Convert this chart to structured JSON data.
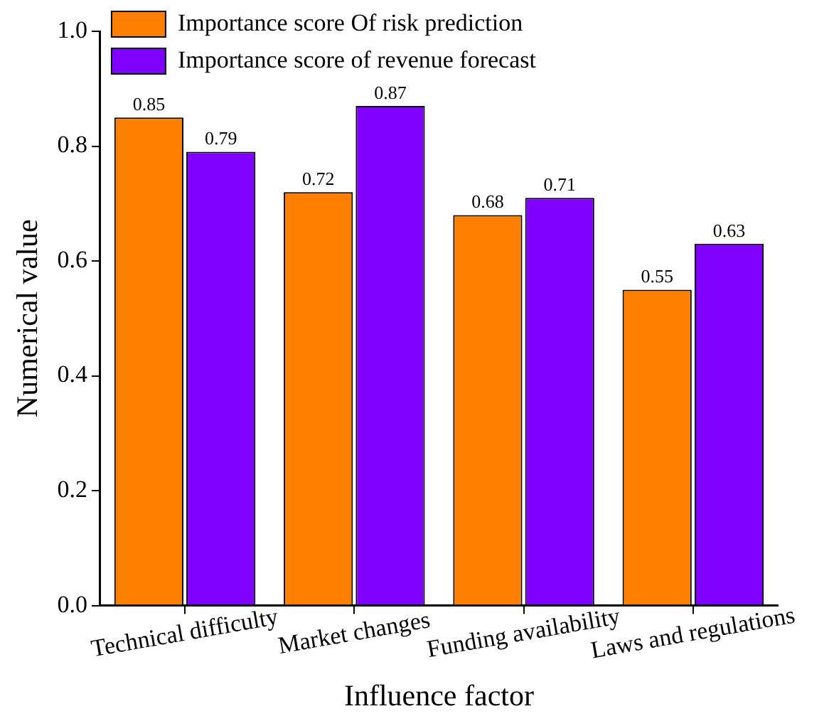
{
  "chart_data": {
    "type": "bar",
    "xlabel": "Influence factor",
    "ylabel": "Numerical value",
    "categories": [
      "Technical difficulty",
      "Market changes",
      "Funding availability",
      "Laws and regulations"
    ],
    "series": [
      {
        "name": "Importance score Of risk prediction",
        "color": "#ff8000",
        "values": [
          0.85,
          0.72,
          0.68,
          0.55
        ]
      },
      {
        "name": "Importance score of revenue forecast",
        "color": "#8000ff",
        "values": [
          0.79,
          0.87,
          0.71,
          0.63
        ]
      }
    ],
    "ylim": [
      0,
      1.0
    ],
    "yticks": [
      {
        "value": 0,
        "label": "0.0"
      },
      {
        "value": 0.2,
        "label": "0.2"
      },
      {
        "value": 0.4,
        "label": "0.4"
      },
      {
        "value": 0.6,
        "label": "0.6"
      },
      {
        "value": 0.8,
        "label": "0.8"
      },
      {
        "value": 1.0,
        "label": "1.0"
      }
    ],
    "grid": false,
    "legend": "top left",
    "data_labels": true
  }
}
